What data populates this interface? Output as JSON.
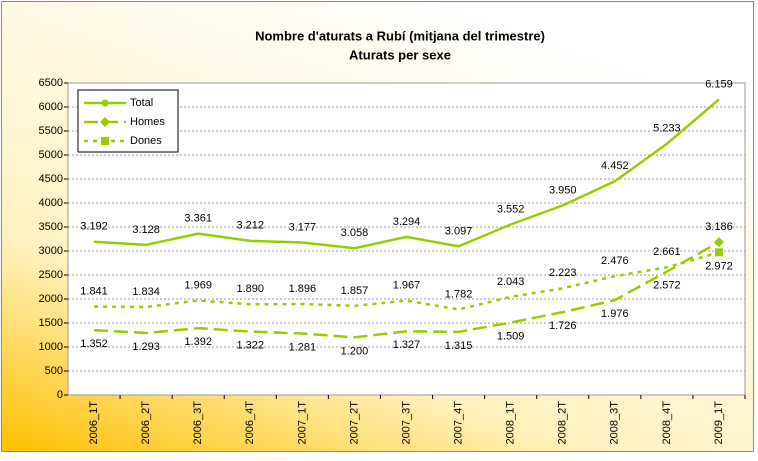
{
  "chart_data": {
    "type": "line",
    "title": "Nombre d'aturats a Rubí (mitjana del trimestre)",
    "subtitle": "Aturats per sexe",
    "categories": [
      "2006_1T",
      "2006_2T",
      "2006_3T",
      "2006_4T",
      "2007_1T",
      "2007_2T",
      "2007_3T",
      "2007_4T",
      "2008_1T",
      "2008_2T",
      "2008_3T",
      "2008_4T",
      "2009_1T"
    ],
    "series": [
      {
        "name": "Total",
        "color": "#99cc00",
        "marker": "circle",
        "dash": "solid",
        "values": [
          3192,
          3128,
          3361,
          3212,
          3177,
          3058,
          3294,
          3097,
          3552,
          3950,
          4452,
          5233,
          6159
        ],
        "value_labels": [
          "3.192",
          "3.128",
          "3.361",
          "3.212",
          "3.177",
          "3.058",
          "3.294",
          "3.097",
          "3.552",
          "3.950",
          "4.452",
          "5.233",
          "6.159"
        ]
      },
      {
        "name": "Homes",
        "color": "#99cc00",
        "marker": "diamond",
        "dash": "dashed",
        "values": [
          1352,
          1293,
          1392,
          1322,
          1281,
          1200,
          1327,
          1315,
          1509,
          1726,
          1976,
          2572,
          3186
        ],
        "value_labels": [
          "1.352",
          "1.293",
          "1.392",
          "1.322",
          "1.281",
          "1.200",
          "1.327",
          "1.315",
          "1.509",
          "1.726",
          "1.976",
          "2.572",
          "3.186"
        ]
      },
      {
        "name": "Dones",
        "color": "#99cc00",
        "marker": "square",
        "dash": "dotted",
        "values": [
          1841,
          1834,
          1969,
          1890,
          1896,
          1857,
          1967,
          1782,
          2043,
          2223,
          2476,
          2661,
          2972
        ],
        "value_labels": [
          "1.841",
          "1.834",
          "1.969",
          "1.890",
          "1.896",
          "1.857",
          "1.967",
          "1.782",
          "2.043",
          "2.223",
          "2.476",
          "2.661",
          "2.972"
        ]
      }
    ],
    "ylim": [
      0,
      6500
    ],
    "yticks": [
      0,
      500,
      1000,
      1500,
      2000,
      2500,
      3000,
      3500,
      4000,
      4500,
      5000,
      5500,
      6000,
      6500
    ],
    "grid": true,
    "legend": "top-left"
  }
}
